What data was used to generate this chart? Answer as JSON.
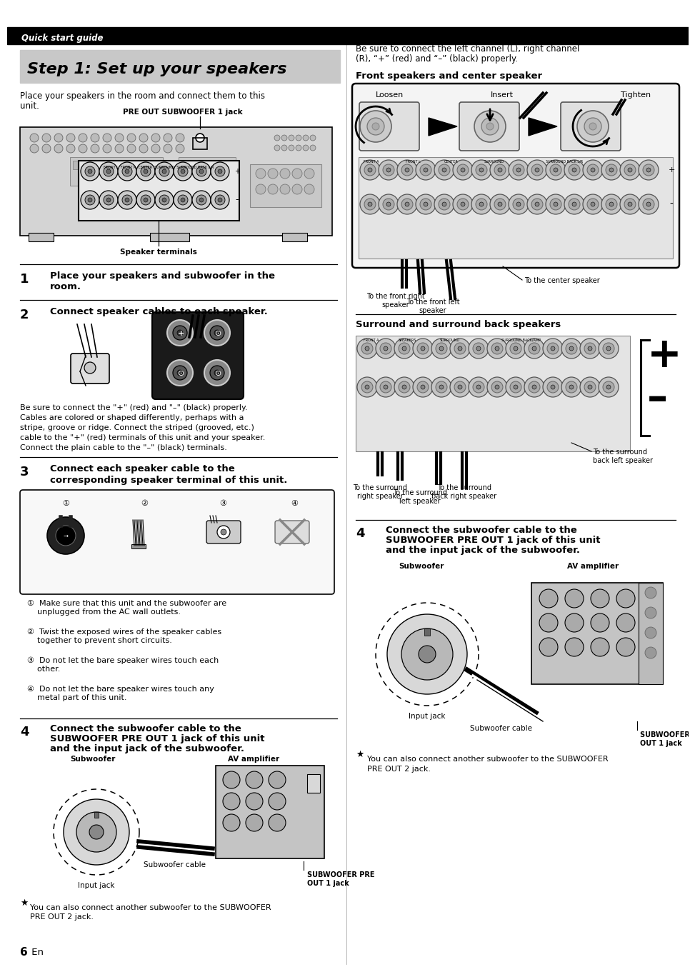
{
  "bg_color": "#ffffff",
  "header_bar_color": "#000000",
  "header_text": "Quick start guide",
  "header_text_color": "#ffffff",
  "title_bg_color": "#c8c8c8",
  "title_text": "Step 1: Set up your speakers",
  "pre_out_label": "PRE OUT SUBWOOFER 1 jack",
  "speaker_terminals_label": "Speaker terminals",
  "step1_text1": "Place your speakers and subwoofer in the",
  "step1_text2": "room.",
  "step2_text": "Connect speaker cables to each speaker.",
  "step2_body1": "Be sure to connect the \"+\" (red) and \"–\" (black) properly.",
  "step2_body2": "Cables are colored or shaped differently, perhaps with a",
  "step2_body3": "stripe, groove or ridge. Connect the striped (grooved, etc.)",
  "step2_body4": "cable to the \"+\" (red) terminals of this unit and your speaker.",
  "step2_body5": "Connect the plain cable to the \"–\" (black) terminals.",
  "step3_text1": "Connect each speaker cable to the",
  "step3_text2": "corresponding speaker terminal of this unit.",
  "step3_i1a": "①  Make sure that this unit and the subwoofer are",
  "step3_i1b": "    unplugged from the AC wall outlets.",
  "step3_i2a": "②  Twist the exposed wires of the speaker cables",
  "step3_i2b": "    together to prevent short circuits.",
  "step3_i3a": "③  Do not let the bare speaker wires touch each",
  "step3_i3b": "    other.",
  "step3_i4a": "④  Do not let the bare speaker wires touch any",
  "step3_i4b": "    metal part of this unit.",
  "step4_text1": "Connect the subwoofer cable to the",
  "step4_text2": "SUBWOOFER PRE OUT 1 jack of this unit",
  "step4_text3": "and the input jack of the subwoofer.",
  "right_intro1": "Be sure to connect the left channel (L), right channel",
  "right_intro2": "(R), “+” (red) and “–” (black) properly.",
  "front_speakers_title": "Front speakers and center speaker",
  "front_loosen": "Loosen",
  "front_insert": "Insert",
  "front_tighten": "Tighten",
  "front_to_right": "To the front right\nspeaker",
  "front_to_left": "To the front left\nspeaker",
  "front_to_center": "To the center speaker",
  "surround_title": "Surround and surround back speakers",
  "surr_to_right": "To the surround\nright speaker",
  "surr_to_left": "To the surround\nleft speaker",
  "surr_to_back_left": "To the surround\nback left speaker",
  "surr_to_back_right": "To the surround\nback right speaker",
  "step4r_sub_label": "Subwoofer",
  "step4r_av_label": "AV amplifier",
  "step4r_input": "Input jack",
  "step4r_cable": "Subwoofer cable",
  "step4r_preout": "SUBWOOFER PRE\nOUT 1 jack",
  "note1": "You can also connect another subwoofer to the SUBWOOFER",
  "note2": "PRE OUT 2 jack.",
  "page_num": "6",
  "page_en": " En"
}
